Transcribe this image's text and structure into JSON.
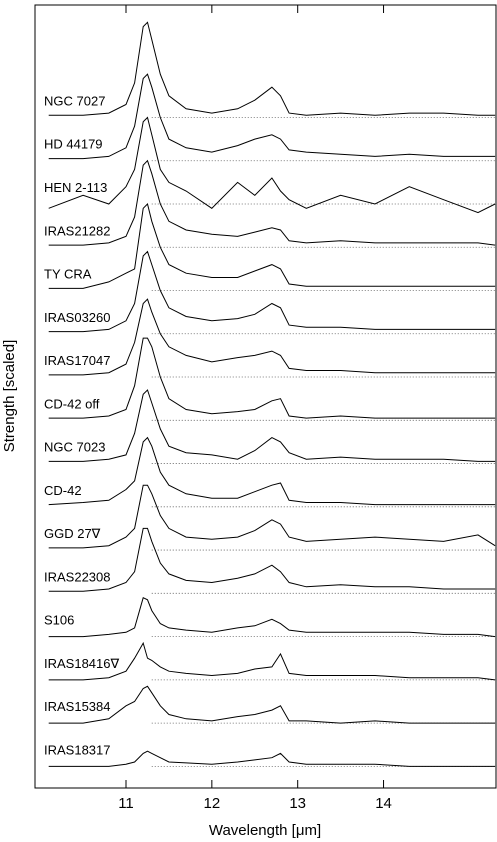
{
  "chart_data": {
    "type": "line",
    "xlabel": "Wavelength [μm]",
    "ylabel": "Strength [scaled]",
    "xlim": [
      9.94,
      15.31
    ],
    "ylim": [
      0,
      18.1
    ],
    "xticks": [
      11,
      12,
      13,
      14
    ],
    "color": "#000000",
    "x": [
      10.1,
      10.5,
      10.8,
      11.0,
      11.1,
      11.2,
      11.25,
      11.3,
      11.4,
      11.5,
      11.7,
      12.0,
      12.3,
      12.5,
      12.7,
      12.8,
      12.9,
      13.1,
      13.5,
      13.9,
      14.3,
      14.7,
      15.1,
      15.3
    ],
    "series": [
      {
        "name": "NGC 7027",
        "baseline": 15.5,
        "values": [
          15.55,
          15.55,
          15.6,
          15.8,
          16.3,
          17.6,
          17.7,
          17.3,
          16.5,
          16.0,
          15.7,
          15.6,
          15.7,
          15.9,
          16.2,
          16.0,
          15.6,
          15.55,
          15.6,
          15.55,
          15.6,
          15.6,
          15.55,
          15.55
        ]
      },
      {
        "name": "HD 44179",
        "baseline": 14.5,
        "values": [
          14.55,
          14.55,
          14.6,
          14.8,
          15.3,
          16.4,
          16.5,
          16.2,
          15.5,
          15.0,
          14.8,
          14.7,
          14.85,
          15.0,
          15.1,
          15.0,
          14.75,
          14.7,
          14.65,
          14.6,
          14.65,
          14.6,
          14.6,
          14.6
        ]
      },
      {
        "name": "HEN 2-113",
        "baseline": 13.5,
        "values": [
          13.4,
          13.7,
          13.5,
          13.9,
          14.3,
          15.4,
          15.5,
          15.1,
          14.3,
          14.0,
          13.8,
          13.4,
          14.0,
          13.7,
          14.1,
          13.8,
          13.6,
          13.4,
          13.7,
          13.5,
          13.9,
          13.6,
          13.3,
          13.5
        ]
      },
      {
        "name": "IRAS21282",
        "baseline": 12.5,
        "values": [
          12.55,
          12.55,
          12.6,
          12.75,
          13.2,
          14.4,
          14.5,
          14.2,
          13.5,
          13.1,
          12.9,
          12.8,
          12.75,
          12.85,
          12.95,
          12.9,
          12.65,
          12.6,
          12.65,
          12.6,
          12.6,
          12.6,
          12.6,
          12.55
        ]
      },
      {
        "name": "TY CRA",
        "baseline": 11.5,
        "values": [
          11.55,
          11.55,
          11.7,
          11.9,
          12.0,
          13.4,
          13.5,
          13.1,
          12.5,
          12.1,
          11.9,
          11.8,
          11.8,
          11.95,
          12.1,
          12.0,
          11.65,
          11.6,
          11.6,
          11.6,
          11.6,
          11.6,
          11.6,
          11.6
        ]
      },
      {
        "name": "IRAS03260",
        "baseline": 10.5,
        "values": [
          10.55,
          10.55,
          10.6,
          10.8,
          11.2,
          12.3,
          12.4,
          12.1,
          11.5,
          11.1,
          10.9,
          10.8,
          10.85,
          10.95,
          11.2,
          11.1,
          10.7,
          10.65,
          10.65,
          10.6,
          10.6,
          10.6,
          10.6,
          10.6
        ]
      },
      {
        "name": "IRAS17047",
        "baseline": 9.5,
        "values": [
          9.55,
          9.55,
          9.6,
          9.8,
          10.3,
          11.2,
          11.3,
          11.0,
          10.5,
          10.2,
          10.0,
          9.85,
          9.95,
          10.0,
          10.1,
          10.0,
          9.7,
          9.65,
          9.65,
          9.6,
          9.6,
          9.6,
          9.6,
          9.6
        ]
      },
      {
        "name": "CD-42 off",
        "baseline": 8.5,
        "values": [
          8.55,
          8.55,
          8.6,
          8.75,
          9.3,
          10.4,
          10.4,
          10.2,
          9.5,
          9.0,
          8.75,
          8.65,
          8.7,
          8.75,
          8.95,
          9.0,
          8.6,
          8.55,
          8.6,
          8.55,
          8.55,
          8.55,
          8.55,
          8.55
        ]
      },
      {
        "name": "NGC 7023",
        "baseline": 7.5,
        "values": [
          7.55,
          7.55,
          7.6,
          7.7,
          8.2,
          9.1,
          9.2,
          8.9,
          8.3,
          7.9,
          7.75,
          7.7,
          7.6,
          7.8,
          8.1,
          8.0,
          7.75,
          7.6,
          7.65,
          7.6,
          7.6,
          7.6,
          7.55,
          7.55
        ]
      },
      {
        "name": "CD-42",
        "baseline": 6.5,
        "values": [
          6.55,
          6.6,
          6.65,
          6.9,
          7.1,
          8.0,
          8.1,
          7.9,
          7.3,
          7.0,
          6.8,
          6.7,
          6.7,
          6.85,
          7.0,
          7.05,
          6.65,
          6.6,
          6.6,
          6.55,
          6.55,
          6.55,
          6.55,
          6.55
        ]
      },
      {
        "name": "GGD 27∇",
        "baseline": 5.5,
        "values": [
          5.55,
          5.55,
          5.6,
          5.8,
          6.0,
          7.0,
          7.0,
          6.8,
          6.3,
          6.0,
          5.8,
          5.75,
          5.8,
          5.95,
          6.2,
          6.1,
          5.8,
          5.7,
          5.75,
          5.8,
          5.75,
          5.7,
          5.85,
          5.6
        ]
      },
      {
        "name": "IRAS22308",
        "baseline": 4.5,
        "values": [
          4.55,
          4.55,
          4.6,
          4.75,
          5.0,
          6.0,
          6.0,
          5.7,
          5.2,
          4.95,
          4.8,
          4.75,
          4.85,
          4.95,
          5.15,
          5.0,
          4.75,
          4.65,
          4.7,
          4.65,
          4.65,
          4.6,
          4.6,
          4.6
        ]
      },
      {
        "name": "S106",
        "baseline": 3.5,
        "values": [
          3.5,
          3.5,
          3.55,
          3.6,
          3.7,
          4.4,
          4.35,
          4.1,
          3.8,
          3.7,
          3.65,
          3.6,
          3.7,
          3.75,
          3.9,
          3.8,
          3.65,
          3.6,
          3.6,
          3.6,
          3.6,
          3.55,
          3.55,
          3.5
        ]
      },
      {
        "name": "IRAS18416∇",
        "baseline": 2.5,
        "values": [
          2.5,
          2.5,
          2.55,
          2.7,
          3.0,
          3.35,
          3.0,
          2.95,
          2.8,
          2.7,
          2.65,
          2.6,
          2.65,
          2.75,
          2.8,
          3.1,
          2.65,
          2.6,
          2.6,
          2.6,
          2.55,
          2.55,
          2.55,
          2.5
        ]
      },
      {
        "name": "IRAS15384",
        "baseline": 1.5,
        "values": [
          1.5,
          1.5,
          1.6,
          1.9,
          2.0,
          2.3,
          2.35,
          2.2,
          1.9,
          1.7,
          1.6,
          1.55,
          1.65,
          1.7,
          1.8,
          1.9,
          1.55,
          1.55,
          1.5,
          1.55,
          1.5,
          1.5,
          1.5,
          1.5
        ]
      },
      {
        "name": "IRAS18317",
        "baseline": 0.5,
        "values": [
          0.5,
          0.5,
          0.5,
          0.55,
          0.6,
          0.8,
          0.85,
          0.8,
          0.7,
          0.6,
          0.58,
          0.55,
          0.6,
          0.65,
          0.7,
          0.8,
          0.6,
          0.55,
          0.55,
          0.55,
          0.5,
          0.5,
          0.5,
          0.5
        ]
      }
    ]
  }
}
